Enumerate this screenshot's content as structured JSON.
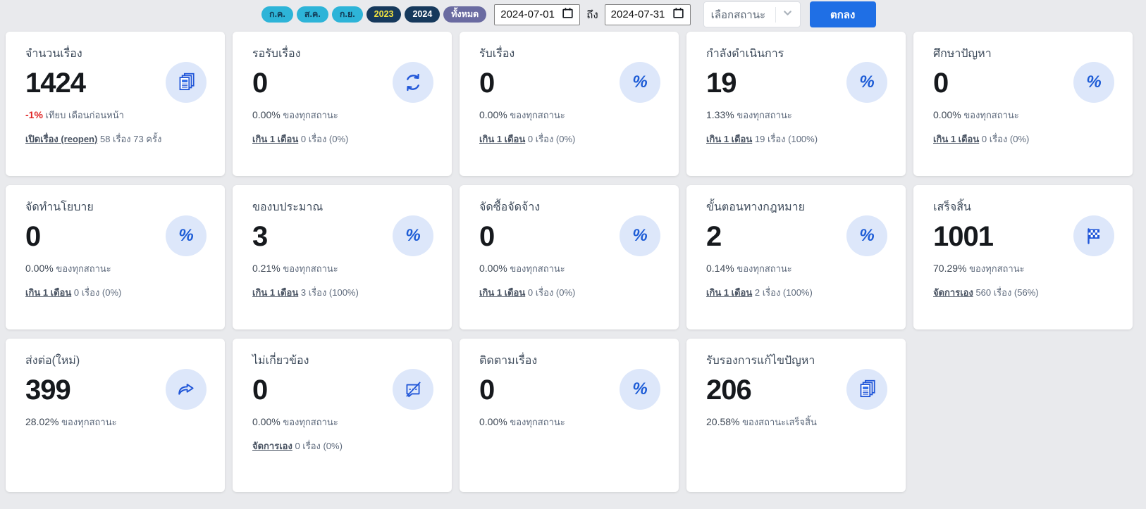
{
  "colors": {
    "accent_blue": "#1f6fe5",
    "icon_blue": "#1d5cd6",
    "icon_circle_bg": "#dde7fa",
    "pill_month_bg": "#2db4d8",
    "pill_year_bg": "#16395c",
    "pill_year_active_text": "#f2e23f",
    "pill_all_bg": "#6a6ba1",
    "negative_red": "#e02424",
    "page_bg": "#e9eaed"
  },
  "filters": {
    "period_pills": [
      {
        "label": "ก.ค.",
        "type": "month"
      },
      {
        "label": "ส.ค.",
        "type": "month"
      },
      {
        "label": "ก.ย.",
        "type": "month"
      },
      {
        "label": "2023",
        "type": "year-active"
      },
      {
        "label": "2024",
        "type": "year"
      },
      {
        "label": "ทั้งหมด",
        "type": "all"
      }
    ],
    "date_from": "2024-07-01",
    "to_label": "ถึง",
    "date_to": "2024-07-31",
    "status_placeholder": "เลือกสถานะ",
    "submit_label": "ตกลง"
  },
  "cards": [
    {
      "title": "จำนวนเรื่อง",
      "value": "1424",
      "icon": "documents-icon",
      "stat": {
        "value": "-1%",
        "suffix": "เทียบ เดือนก่อนหน้า",
        "negative": true
      },
      "link": {
        "label": "เปิดเรื่อง (reopen)",
        "suffix": "58 เรื่อง 73 ครั้ง"
      }
    },
    {
      "title": "รอรับเรื่อง",
      "value": "0",
      "icon": "sync-icon",
      "stat": {
        "value": "0.00%",
        "suffix": "ของทุกสถานะ"
      },
      "link": {
        "label": "เกิน 1 เดือน",
        "suffix": "0 เรื่อง (0%)"
      }
    },
    {
      "title": "รับเรื่อง",
      "value": "0",
      "icon": "percent-icon",
      "stat": {
        "value": "0.00%",
        "suffix": "ของทุกสถานะ"
      },
      "link": {
        "label": "เกิน 1 เดือน",
        "suffix": "0 เรื่อง (0%)"
      }
    },
    {
      "title": "กำลังดำเนินการ",
      "value": "19",
      "icon": "percent-icon",
      "stat": {
        "value": "1.33%",
        "suffix": "ของทุกสถานะ"
      },
      "link": {
        "label": "เกิน 1 เดือน",
        "suffix": "19 เรื่อง (100%)"
      }
    },
    {
      "title": "ศึกษาปัญหา",
      "value": "0",
      "icon": "percent-icon",
      "stat": {
        "value": "0.00%",
        "suffix": "ของทุกสถานะ"
      },
      "link": {
        "label": "เกิน 1 เดือน",
        "suffix": "0 เรื่อง (0%)"
      }
    },
    {
      "title": "จัดทำนโยบาย",
      "value": "0",
      "icon": "percent-icon",
      "stat": {
        "value": "0.00%",
        "suffix": "ของทุกสถานะ"
      },
      "link": {
        "label": "เกิน 1 เดือน",
        "suffix": "0 เรื่อง (0%)"
      }
    },
    {
      "title": "ของบประมาณ",
      "value": "3",
      "icon": "percent-icon",
      "stat": {
        "value": "0.21%",
        "suffix": "ของทุกสถานะ"
      },
      "link": {
        "label": "เกิน 1 เดือน",
        "suffix": "3 เรื่อง (100%)"
      }
    },
    {
      "title": "จัดซื้อจัดจ้าง",
      "value": "0",
      "icon": "percent-icon",
      "stat": {
        "value": "0.00%",
        "suffix": "ของทุกสถานะ"
      },
      "link": {
        "label": "เกิน 1 เดือน",
        "suffix": "0 เรื่อง (0%)"
      }
    },
    {
      "title": "ขั้นตอนทางกฎหมาย",
      "value": "2",
      "icon": "percent-icon",
      "stat": {
        "value": "0.14%",
        "suffix": "ของทุกสถานะ"
      },
      "link": {
        "label": "เกิน 1 เดือน",
        "suffix": "2 เรื่อง (100%)"
      }
    },
    {
      "title": "เสร็จสิ้น",
      "value": "1001",
      "icon": "flag-checkered-icon",
      "stat": {
        "value": "70.29%",
        "suffix": "ของทุกสถานะ"
      },
      "link": {
        "label": "จัดการเอง",
        "suffix": "560 เรื่อง (56%)"
      }
    },
    {
      "title": "ส่งต่อ(ใหม่)",
      "value": "399",
      "icon": "share-icon",
      "stat": {
        "value": "28.02%",
        "suffix": "ของทุกสถานะ"
      },
      "link": null
    },
    {
      "title": "ไม่เกี่ยวข้อง",
      "value": "0",
      "icon": "chat-slash-icon",
      "stat": {
        "value": "0.00%",
        "suffix": "ของทุกสถานะ"
      },
      "link": {
        "label": "จัดการเอง",
        "suffix": "0 เรื่อง (0%)"
      }
    },
    {
      "title": "ติดตามเรื่อง",
      "value": "0",
      "icon": "percent-icon",
      "stat": {
        "value": "0.00%",
        "suffix": "ของทุกสถานะ"
      },
      "link": null
    },
    {
      "title": "รับรองการแก้ไขปัญหา",
      "value": "206",
      "icon": "documents-icon",
      "stat": {
        "value": "20.58%",
        "suffix": "ของสถานะเสร็จสิ้น"
      },
      "link": null
    }
  ]
}
